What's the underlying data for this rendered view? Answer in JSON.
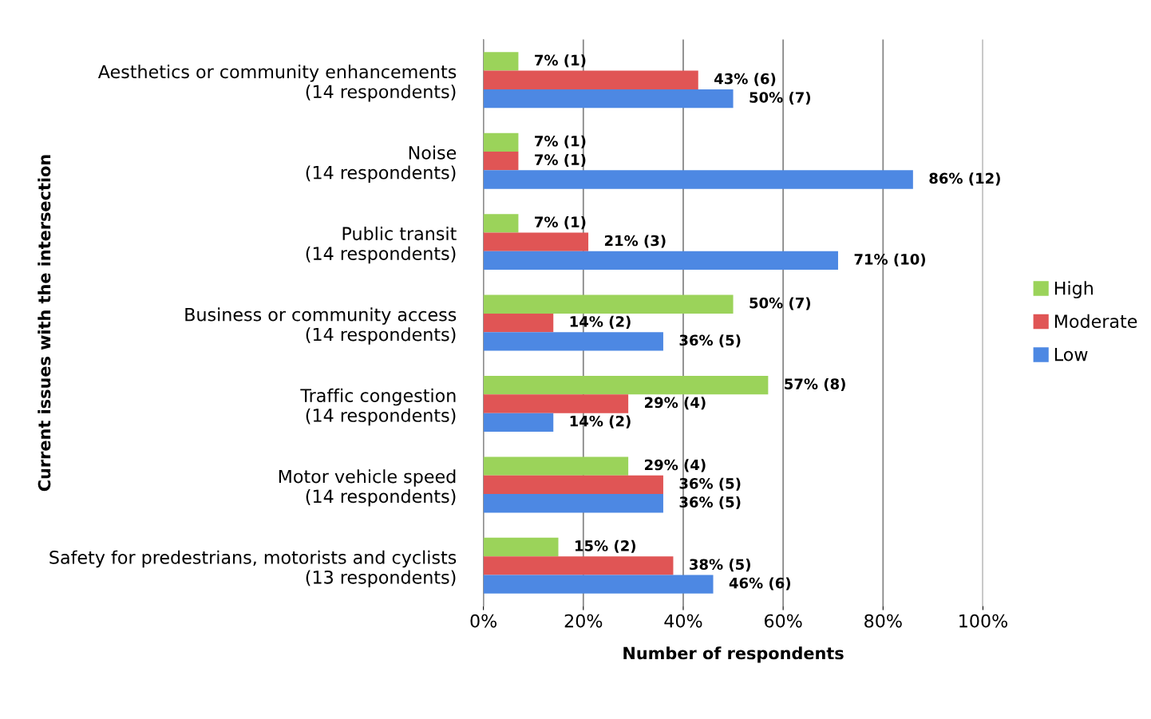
{
  "chart_data": {
    "type": "bar",
    "orientation": "horizontal",
    "xlabel": "Number of respondents",
    "ylabel": "Current issues with the intersection",
    "categories": [
      "Aesthetics or community enhancements\n(14 respondents)",
      "Noise\n(14 respondents)",
      "Public transit\n(14 respondents)",
      "Business or community access\n(14 respondents)",
      "Traffic congestion\n(14 respondents)",
      "Motor vehicle speed\n(14 respondents)",
      "Safety for predestrians, motorists and cyclists\n(13 respondents)"
    ],
    "series": [
      {
        "name": "High",
        "color": "#9bd35a",
        "values": [
          7,
          7,
          7,
          50,
          57,
          29,
          15
        ],
        "value_labels": [
          "7% (1)",
          "7% (1)",
          "7% (1)",
          "50% (7)",
          "57% (8)",
          "29% (4)",
          "15% (2)"
        ]
      },
      {
        "name": "Moderate",
        "color": "#e05555",
        "values": [
          43,
          7,
          21,
          14,
          29,
          36,
          38
        ],
        "value_labels": [
          "43% (6)",
          "7% (1)",
          "21% (3)",
          "14% (2)",
          "29% (4)",
          "36% (5)",
          "38% (5)"
        ]
      },
      {
        "name": "Low",
        "color": "#4d88e3",
        "values": [
          50,
          86,
          71,
          36,
          14,
          36,
          46
        ],
        "value_labels": [
          "50% (7)",
          "86% (12)",
          "71% (10)",
          "36% (5)",
          "14% (2)",
          "36% (5)",
          "46% (6)"
        ]
      }
    ],
    "xlim": [
      0,
      100
    ],
    "xticks": [
      {
        "value": 0,
        "label": "0%"
      },
      {
        "value": 20,
        "label": "20%"
      },
      {
        "value": 40,
        "label": "40%"
      },
      {
        "value": 60,
        "label": "60%"
      },
      {
        "value": 80,
        "label": "80%"
      },
      {
        "value": 100,
        "label": "100%"
      }
    ],
    "grid": "x",
    "legend": "right"
  }
}
